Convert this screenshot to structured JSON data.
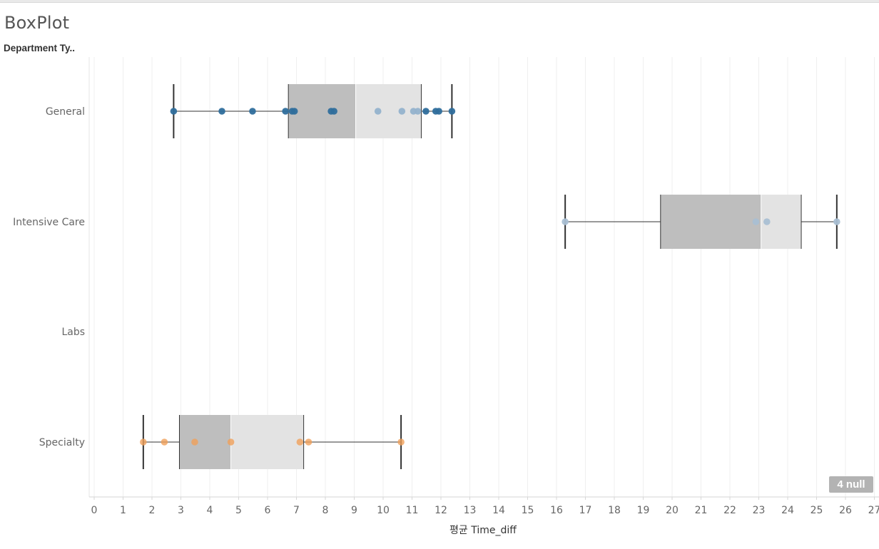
{
  "title": "BoxPlot",
  "rows_header": "Department Ty..",
  "null_badge": "4 null",
  "colors": {
    "general": "#2f6e9c",
    "general_light": "#93b2cc",
    "intensive": "#a9bfd3",
    "specialty": "#f0a05a",
    "box_lower": "#bebebe",
    "box_upper": "#e3e3e3",
    "whisker": "#333333",
    "grid": "#efefef"
  },
  "chart_data": {
    "type": "boxplot",
    "title": "BoxPlot",
    "xlabel": "평균 Time_diff",
    "ylabel": "Department Ty..",
    "xlim": [
      0,
      27
    ],
    "x_ticks": [
      0,
      1,
      2,
      3,
      4,
      5,
      6,
      7,
      8,
      9,
      10,
      11,
      12,
      13,
      14,
      15,
      16,
      17,
      18,
      19,
      20,
      21,
      22,
      23,
      24,
      25,
      26,
      27
    ],
    "grid": "vertical",
    "categories": [
      "General",
      "Intensive Care",
      "Labs",
      "Specialty"
    ],
    "series": [
      {
        "category": "General",
        "whisker_low": 2.75,
        "q1": 6.72,
        "median": 9.05,
        "q3": 11.32,
        "whisker_high": 12.38,
        "points": [
          {
            "x": 2.75,
            "shade": "dark"
          },
          {
            "x": 4.42,
            "shade": "dark"
          },
          {
            "x": 5.48,
            "shade": "dark"
          },
          {
            "x": 6.62,
            "shade": "dark"
          },
          {
            "x": 6.85,
            "shade": "dark"
          },
          {
            "x": 6.93,
            "shade": "dark"
          },
          {
            "x": 8.2,
            "shade": "dark"
          },
          {
            "x": 8.3,
            "shade": "dark"
          },
          {
            "x": 9.82,
            "shade": "light"
          },
          {
            "x": 10.65,
            "shade": "light"
          },
          {
            "x": 11.05,
            "shade": "light"
          },
          {
            "x": 11.2,
            "shade": "light"
          },
          {
            "x": 11.48,
            "shade": "dark"
          },
          {
            "x": 11.82,
            "shade": "dark"
          },
          {
            "x": 11.93,
            "shade": "dark"
          },
          {
            "x": 12.38,
            "shade": "dark"
          }
        ]
      },
      {
        "category": "Intensive Care",
        "whisker_low": 16.3,
        "q1": 19.6,
        "median": 23.08,
        "q3": 24.47,
        "whisker_high": 25.7,
        "points": [
          {
            "x": 16.3,
            "shade": "light"
          },
          {
            "x": 22.9,
            "shade": "light"
          },
          {
            "x": 23.28,
            "shade": "light"
          },
          {
            "x": 25.7,
            "shade": "light"
          }
        ]
      },
      {
        "category": "Labs",
        "points": []
      },
      {
        "category": "Specialty",
        "whisker_low": 1.7,
        "q1": 2.95,
        "median": 4.73,
        "q3": 7.25,
        "whisker_high": 10.62,
        "points": [
          {
            "x": 1.7,
            "shade": "light"
          },
          {
            "x": 2.43,
            "shade": "light"
          },
          {
            "x": 3.48,
            "shade": "light"
          },
          {
            "x": 4.73,
            "shade": "light"
          },
          {
            "x": 7.12,
            "shade": "light"
          },
          {
            "x": 7.42,
            "shade": "light"
          },
          {
            "x": 10.62,
            "shade": "light"
          }
        ]
      }
    ]
  }
}
